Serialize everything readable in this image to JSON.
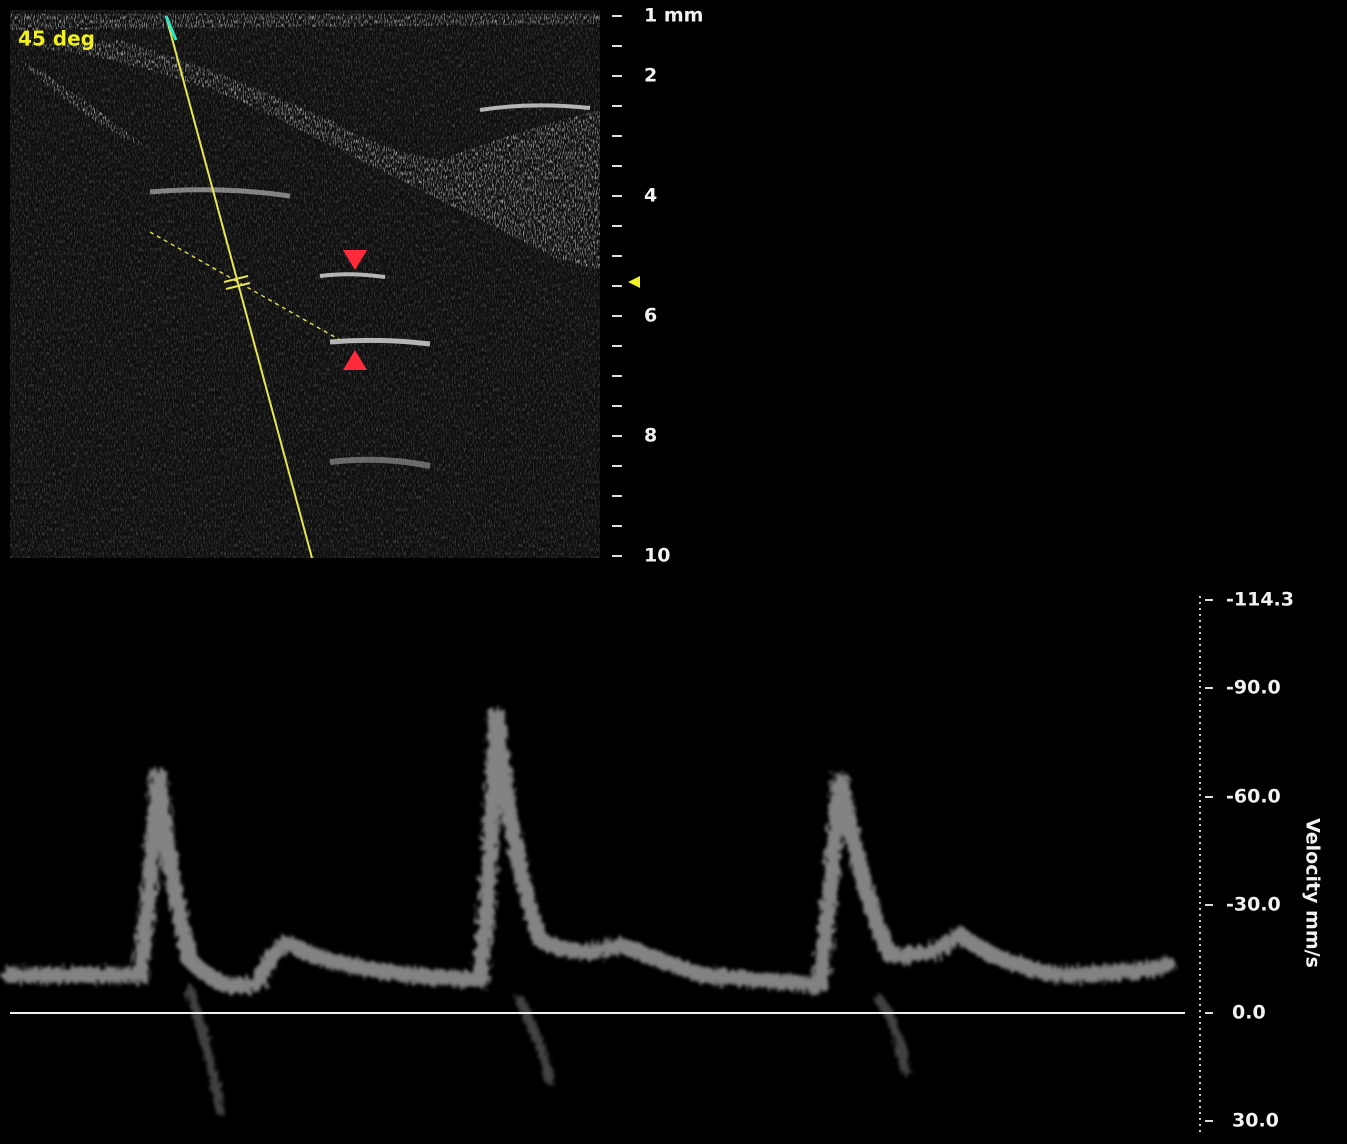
{
  "bmode": {
    "angle_label": "45 deg",
    "depth_ticks": [
      "1 mm",
      "2",
      "4",
      "6",
      "8",
      "10"
    ]
  },
  "doppler": {
    "axis_title": "Velocity mm/s",
    "velocity_ticks": [
      "-114.3",
      "-90.0",
      "-60.0",
      "-30.0",
      "0.0",
      "30.0"
    ]
  }
}
